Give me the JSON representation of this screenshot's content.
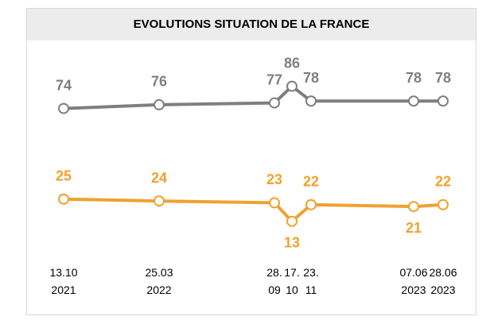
{
  "chart_data": {
    "type": "line",
    "title": "EVOLUTIONS SITUATION DE LA FRANCE",
    "categories": [
      "13.10\n2021",
      "25.03\n2022",
      "28.\n09",
      "17.\n10",
      "23.\n11",
      "07.06\n2023",
      "28.06\n2023"
    ],
    "series": [
      {
        "color": "#7f7f7f",
        "values": [
          74,
          76,
          77,
          86,
          78,
          78,
          78
        ]
      },
      {
        "color": "#f0a12e",
        "values": [
          25,
          24,
          23,
          13,
          22,
          21,
          22
        ]
      }
    ]
  }
}
